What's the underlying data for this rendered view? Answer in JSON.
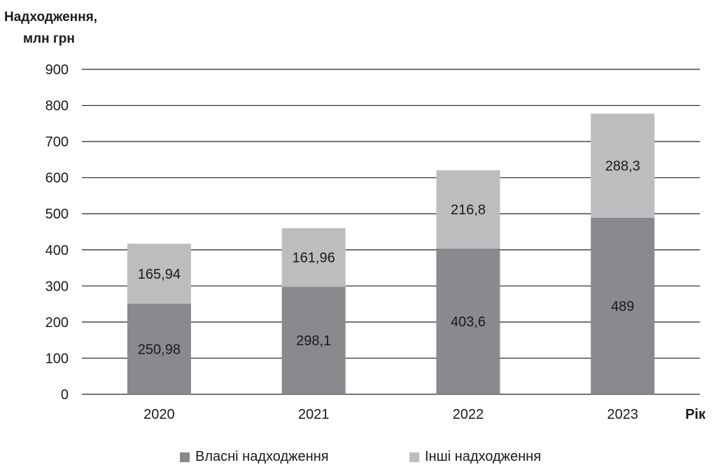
{
  "chart_data": {
    "type": "bar",
    "stacked": true,
    "title": "",
    "ylabel_lines": [
      "Надходження,",
      "млн грн"
    ],
    "xlabel": "Рік",
    "categories": [
      "2020",
      "2021",
      "2022",
      "2023"
    ],
    "ylim": [
      0,
      900
    ],
    "yticks": [
      0,
      100,
      200,
      300,
      400,
      500,
      600,
      700,
      800,
      900
    ],
    "grid": true,
    "legend_position": "bottom",
    "series": [
      {
        "name": "Власні надходження",
        "color": "#898a8d",
        "values": [
          250.98,
          298.1,
          403.6,
          489
        ],
        "labels": [
          "250,98",
          "298,1",
          "403,6",
          "489"
        ]
      },
      {
        "name": "Інші надходження",
        "color": "#bcbdbf",
        "values": [
          165.94,
          161.96,
          216.8,
          288.3
        ],
        "labels": [
          "165,94",
          "161,96",
          "216,8",
          "288,3"
        ]
      }
    ]
  }
}
